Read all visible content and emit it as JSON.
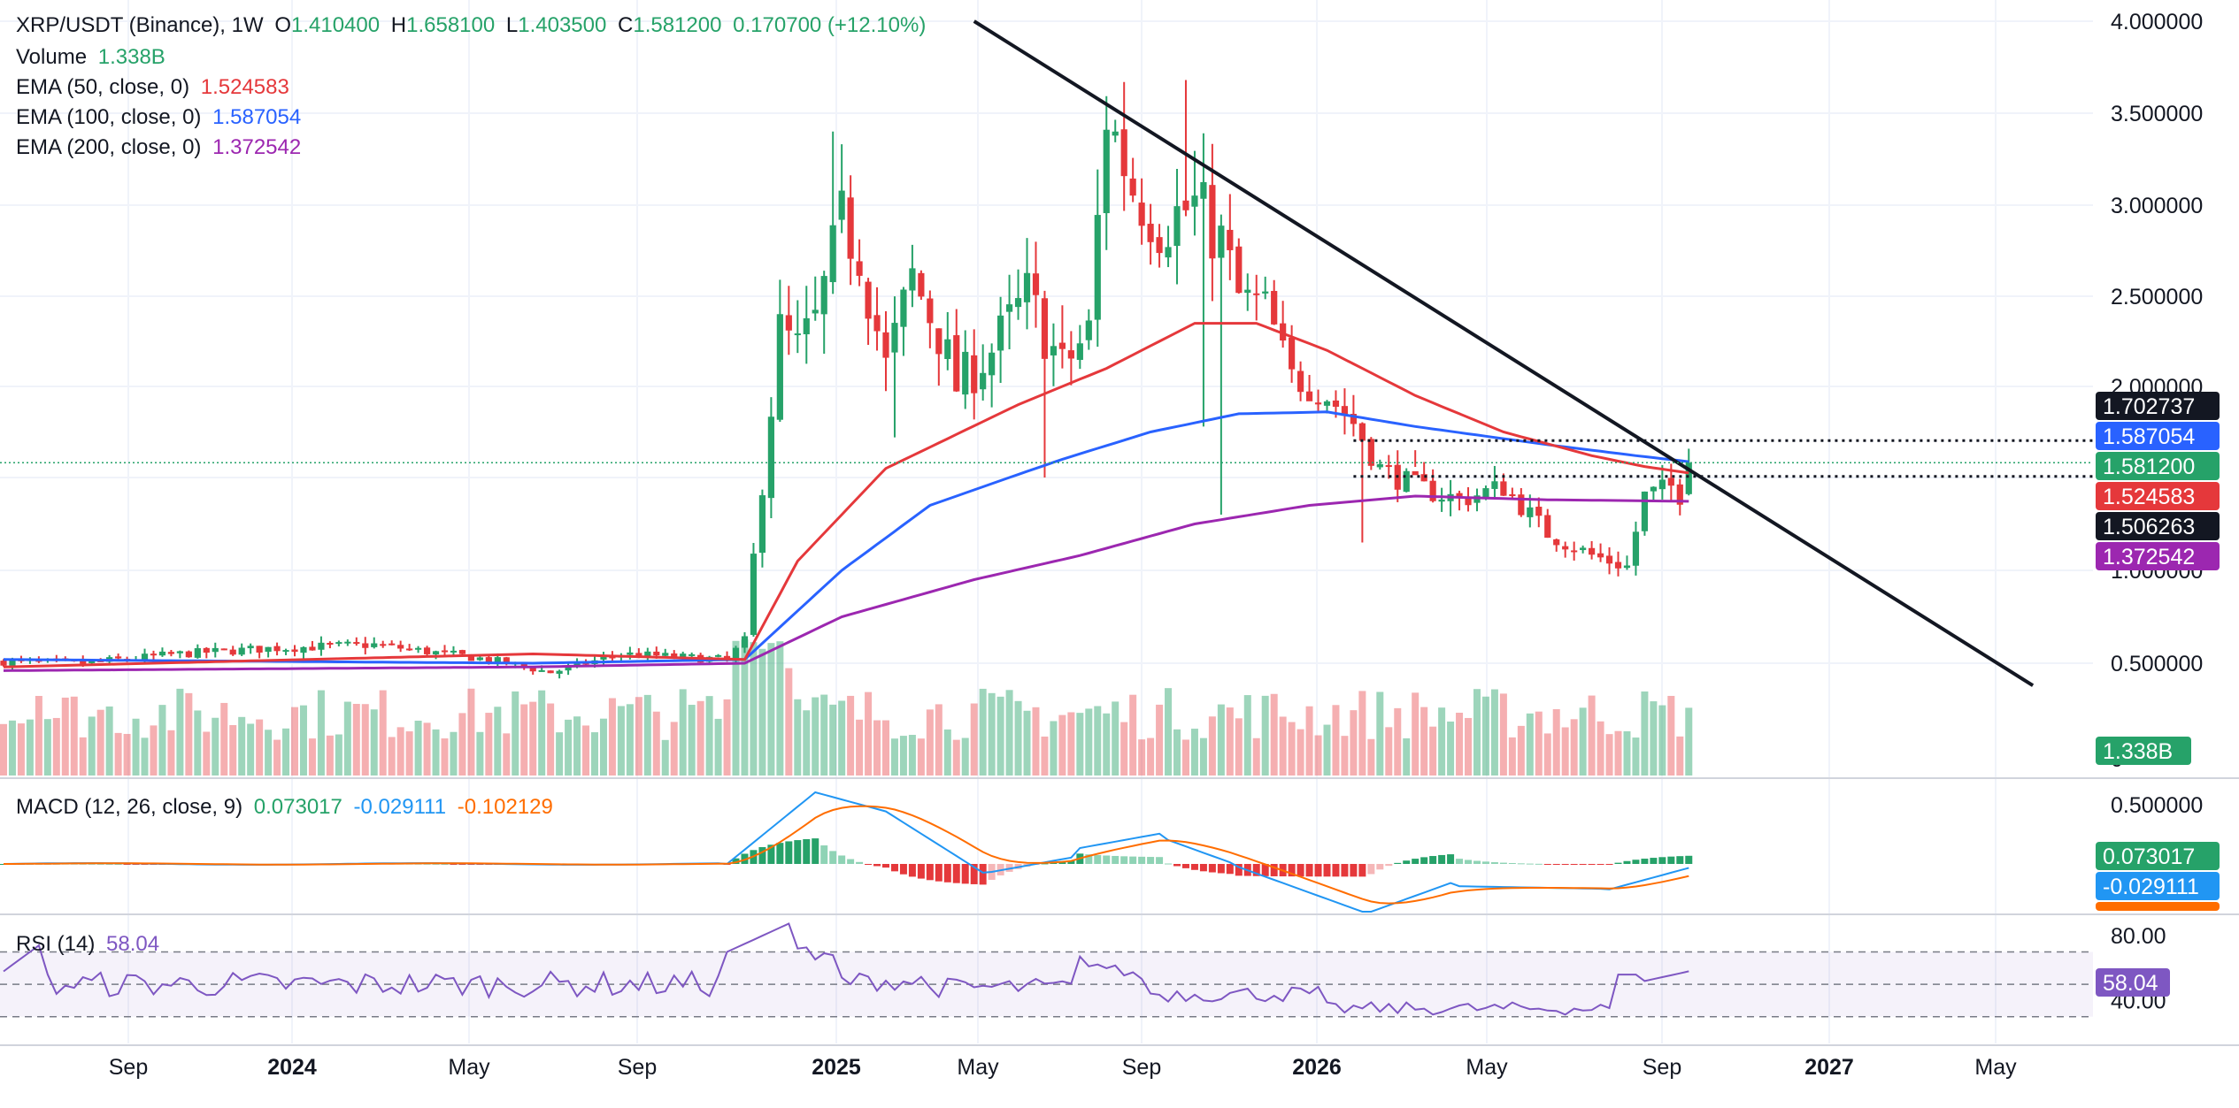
{
  "header": {
    "symbol": "XRP/USDT (Binance), 1W",
    "ohlc": [
      {
        "label": "O",
        "value": "1.410400"
      },
      {
        "label": "H",
        "value": "1.658100"
      },
      {
        "label": "L",
        "value": "1.403500"
      },
      {
        "label": "C",
        "value": "1.581200"
      }
    ],
    "change": "0.170700 (+12.10%)"
  },
  "legend": {
    "volume": {
      "label": "Volume",
      "value": "1.338B"
    },
    "ema50": {
      "label": "EMA (50, close, 0)",
      "value": "1.524583"
    },
    "ema100": {
      "label": "EMA (100, close, 0)",
      "value": "1.587054"
    },
    "ema200": {
      "label": "EMA (200, close, 0)",
      "value": "1.372542"
    },
    "macd": {
      "label": "MACD (12, 26, close, 9)",
      "values": [
        "0.073017",
        "-0.029111",
        "-0.102129"
      ]
    },
    "rsi": {
      "label": "RSI (14)",
      "value": "58.04"
    }
  },
  "colors": {
    "up": "#26a269",
    "down": "#e5383b",
    "ema50": "#e5383b",
    "ema100": "#2962ff",
    "ema200": "#9c27b0",
    "macd_line": "#2196f3",
    "signal_line": "#ff6d00",
    "rsi_line": "#7e57c2"
  },
  "chart_data": {
    "type": "candlestick",
    "price_axis": {
      "ticks": [
        "4.000000",
        "3.500000",
        "3.000000",
        "2.500000",
        "2.000000",
        "1.000000",
        "0.500000",
        "0"
      ],
      "ylim": [
        0,
        4.0
      ]
    },
    "price_tags": [
      {
        "value": "1.702737",
        "bg": "#131722"
      },
      {
        "value": "1.587054",
        "bg": "#2962ff"
      },
      {
        "value": "1.581200",
        "bg": "#26a269"
      },
      {
        "value": "1.524583",
        "bg": "#e5383b"
      },
      {
        "value": "1.506263",
        "bg": "#131722"
      },
      {
        "value": "1.372542",
        "bg": "#9c27b0"
      }
    ],
    "volume_tag": "1.338B",
    "macd_axis": {
      "ticks": [
        "0.500000"
      ]
    },
    "macd_tags": [
      {
        "value": "0.073017",
        "bg": "#26a269"
      },
      {
        "value": "-0.029111",
        "bg": "#2196f3"
      },
      {
        "value": "-0.102129",
        "bg": "#ff6d00"
      }
    ],
    "rsi_axis": {
      "ticks": [
        "80.00",
        "40.00"
      ],
      "levels": [
        70,
        50,
        30
      ]
    },
    "rsi_tag": "58.04",
    "time_axis": {
      "labels": [
        "Sep",
        "2024",
        "May",
        "Sep",
        "2025",
        "May",
        "Sep",
        "2026",
        "May",
        "Sep",
        "2027",
        "May"
      ],
      "bold": [
        false,
        true,
        false,
        false,
        true,
        false,
        false,
        true,
        false,
        false,
        true,
        false
      ]
    },
    "anchors": [
      {
        "i": 0,
        "p": 0.51
      },
      {
        "i": 9,
        "p": 0.5
      },
      {
        "i": 20,
        "p": 0.55
      },
      {
        "i": 30,
        "p": 0.58
      },
      {
        "i": 42,
        "p": 0.6
      },
      {
        "i": 55,
        "p": 0.52
      },
      {
        "i": 62,
        "p": 0.45
      },
      {
        "i": 70,
        "p": 0.55
      },
      {
        "i": 82,
        "p": 0.52
      },
      {
        "i": 84,
        "p": 0.62
      },
      {
        "i": 86,
        "p": 1.5
      },
      {
        "i": 88,
        "p": 2.3
      },
      {
        "i": 90,
        "p": 2.2
      },
      {
        "i": 92,
        "p": 2.35
      },
      {
        "i": 95,
        "p": 2.9
      },
      {
        "i": 97,
        "p": 2.75
      },
      {
        "i": 100,
        "p": 2.1
      },
      {
        "i": 103,
        "p": 2.6
      },
      {
        "i": 106,
        "p": 2.3
      },
      {
        "i": 108,
        "p": 2.0
      },
      {
        "i": 112,
        "p": 2.2
      },
      {
        "i": 116,
        "p": 2.5
      },
      {
        "i": 120,
        "p": 2.1
      },
      {
        "i": 123,
        "p": 2.3
      },
      {
        "i": 125,
        "p": 3.5
      },
      {
        "i": 128,
        "p": 3.1
      },
      {
        "i": 131,
        "p": 2.9
      },
      {
        "i": 135,
        "p": 3.0
      },
      {
        "i": 138,
        "p": 2.8
      },
      {
        "i": 140,
        "p": 2.5
      },
      {
        "i": 143,
        "p": 2.45
      },
      {
        "i": 146,
        "p": 2.05
      },
      {
        "i": 150,
        "p": 1.95
      },
      {
        "i": 153,
        "p": 1.8
      },
      {
        "i": 156,
        "p": 1.55
      },
      {
        "i": 160,
        "p": 1.45
      },
      {
        "i": 165,
        "p": 1.38
      },
      {
        "i": 170,
        "p": 1.45
      },
      {
        "i": 175,
        "p": 1.2
      },
      {
        "i": 180,
        "p": 1.08
      },
      {
        "i": 184,
        "p": 1.02
      },
      {
        "i": 186,
        "p": 1.4
      },
      {
        "i": 189,
        "p": 1.45
      },
      {
        "i": 190,
        "p": 1.41
      },
      {
        "i": 191,
        "p": 1.58
      }
    ],
    "ema": {
      "ema50": [
        {
          "i": 0,
          "p": 0.48
        },
        {
          "i": 60,
          "p": 0.55
        },
        {
          "i": 84,
          "p": 0.52
        },
        {
          "i": 90,
          "p": 1.05
        },
        {
          "i": 100,
          "p": 1.55
        },
        {
          "i": 115,
          "p": 1.9
        },
        {
          "i": 125,
          "p": 2.1
        },
        {
          "i": 135,
          "p": 2.35
        },
        {
          "i": 142,
          "p": 2.35
        },
        {
          "i": 150,
          "p": 2.2
        },
        {
          "i": 160,
          "p": 1.95
        },
        {
          "i": 170,
          "p": 1.75
        },
        {
          "i": 180,
          "p": 1.62
        },
        {
          "i": 186,
          "p": 1.56
        },
        {
          "i": 191,
          "p": 1.525
        }
      ],
      "ema100": [
        {
          "i": 0,
          "p": 0.52
        },
        {
          "i": 60,
          "p": 0.5
        },
        {
          "i": 84,
          "p": 0.52
        },
        {
          "i": 95,
          "p": 1.0
        },
        {
          "i": 105,
          "p": 1.35
        },
        {
          "i": 120,
          "p": 1.6
        },
        {
          "i": 130,
          "p": 1.75
        },
        {
          "i": 140,
          "p": 1.85
        },
        {
          "i": 150,
          "p": 1.86
        },
        {
          "i": 160,
          "p": 1.78
        },
        {
          "i": 175,
          "p": 1.68
        },
        {
          "i": 185,
          "p": 1.62
        },
        {
          "i": 191,
          "p": 1.587
        }
      ],
      "ema200": [
        {
          "i": 0,
          "p": 0.46
        },
        {
          "i": 60,
          "p": 0.48
        },
        {
          "i": 84,
          "p": 0.5
        },
        {
          "i": 95,
          "p": 0.75
        },
        {
          "i": 110,
          "p": 0.95
        },
        {
          "i": 122,
          "p": 1.08
        },
        {
          "i": 135,
          "p": 1.25
        },
        {
          "i": 148,
          "p": 1.35
        },
        {
          "i": 160,
          "p": 1.4
        },
        {
          "i": 175,
          "p": 1.38
        },
        {
          "i": 191,
          "p": 1.372
        }
      ]
    },
    "trendline": {
      "from": {
        "i": 110,
        "p": 4.05
      },
      "to": {
        "i": 230,
        "p": 0.38
      }
    },
    "horizontal_levels": [
      1.702737,
      1.506263
    ],
    "current_price": 1.5812
  }
}
